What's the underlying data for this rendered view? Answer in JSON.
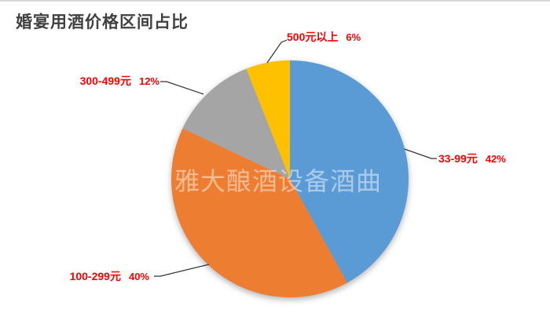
{
  "title": "婚宴用酒价格区间占比",
  "watermark": "雅大酿酒设备酒曲",
  "chart_data": {
    "type": "pie",
    "title": "婚宴用酒价格区间占比",
    "start_angle_deg": 0,
    "direction": "clockwise",
    "legend": "none",
    "label_color": "#ff0000",
    "slices": [
      {
        "label": "33-99元",
        "value": 42,
        "pct_label": "42%",
        "color": "#5B9BD5"
      },
      {
        "label": "100-299元",
        "value": 40,
        "pct_label": "40%",
        "color": "#ED7D31"
      },
      {
        "label": "300-499元",
        "value": 12,
        "pct_label": "12%",
        "color": "#A5A5A5"
      },
      {
        "label": "500元以上",
        "value": 6,
        "pct_label": "6%",
        "color": "#FFC000"
      }
    ]
  }
}
